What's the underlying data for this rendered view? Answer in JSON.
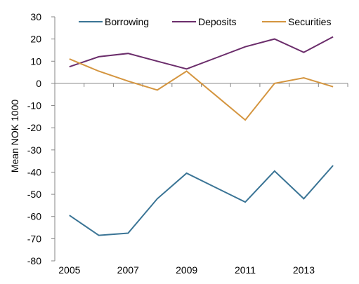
{
  "chart_data": {
    "type": "line",
    "title": "",
    "xlabel": "",
    "ylabel": "Mean NOK 1000",
    "x": [
      2005,
      2006,
      2007,
      2008,
      2009,
      2010,
      2011,
      2012,
      2013,
      2014
    ],
    "x_tick_labels": [
      "2005",
      "2007",
      "2009",
      "2011",
      "2013"
    ],
    "xlim": [
      2004.5,
      2014.5
    ],
    "ylim": [
      -80,
      30
    ],
    "y_ticks": [
      30,
      20,
      10,
      0,
      -10,
      -20,
      -30,
      -40,
      -50,
      -60,
      -70,
      -80
    ],
    "grid": false,
    "legend_position": "top",
    "series": [
      {
        "name": "Borrowing",
        "color": "#3A7495",
        "values": [
          -59.5,
          -68.5,
          -67.5,
          -52,
          -40.5,
          -47,
          -53.5,
          -39.5,
          -52,
          -37
        ]
      },
      {
        "name": "Deposits",
        "color": "#6B2D6B",
        "values": [
          7.5,
          12,
          13.5,
          10,
          6.5,
          11.5,
          16.5,
          20,
          14,
          21
        ]
      },
      {
        "name": "Securities",
        "color": "#D4953F",
        "values": [
          11,
          5.5,
          1,
          -3,
          5.5,
          -5.5,
          -16.5,
          0,
          2.5,
          -1.5
        ]
      }
    ]
  }
}
